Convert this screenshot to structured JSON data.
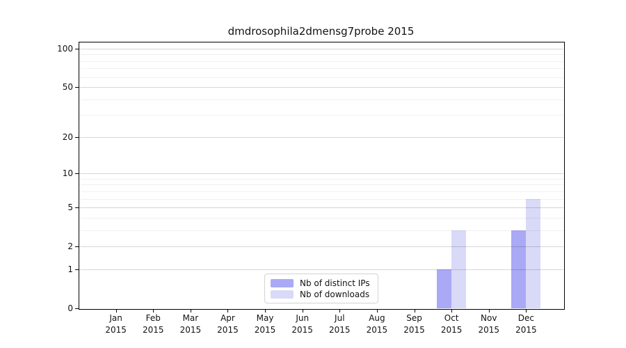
{
  "title": "dmdrosophila2dmensg7probe 2015",
  "colors": {
    "distinct_ips": "#a9a9f5",
    "downloads": "#d9d9f8",
    "axis": "#000000",
    "grid_major": "rgba(0,0,0,0.16)",
    "grid_minor": "rgba(0,0,0,0.06)"
  },
  "legend": {
    "items": [
      {
        "label": "Nb of distinct IPs",
        "color_key": "distinct_ips"
      },
      {
        "label": "Nb of downloads",
        "color_key": "downloads"
      }
    ]
  },
  "chart_data": {
    "type": "bar",
    "title": "dmdrosophila2dmensg7probe 2015",
    "scale": "log1p",
    "year": "2015",
    "categories": [
      "Jan",
      "Feb",
      "Mar",
      "Apr",
      "May",
      "Jun",
      "Jul",
      "Aug",
      "Sep",
      "Oct",
      "Nov",
      "Dec"
    ],
    "series": [
      {
        "name": "Nb of distinct IPs",
        "color_key": "distinct_ips",
        "values": [
          0,
          0,
          0,
          0,
          0,
          0,
          0,
          0,
          0,
          1,
          0,
          3
        ]
      },
      {
        "name": "Nb of downloads",
        "color_key": "downloads",
        "values": [
          0,
          0,
          0,
          0,
          0,
          0,
          0,
          0,
          0,
          3,
          0,
          6
        ]
      }
    ],
    "yticks": [
      0,
      1,
      2,
      5,
      10,
      20,
      50,
      100
    ],
    "minor_yticks": [
      3,
      4,
      6,
      7,
      8,
      9,
      30,
      40,
      60,
      70,
      80,
      90
    ],
    "ylim": [
      0,
      113
    ],
    "xlabel": "",
    "ylabel": "",
    "grid": true,
    "legend_position": "lower-center"
  }
}
